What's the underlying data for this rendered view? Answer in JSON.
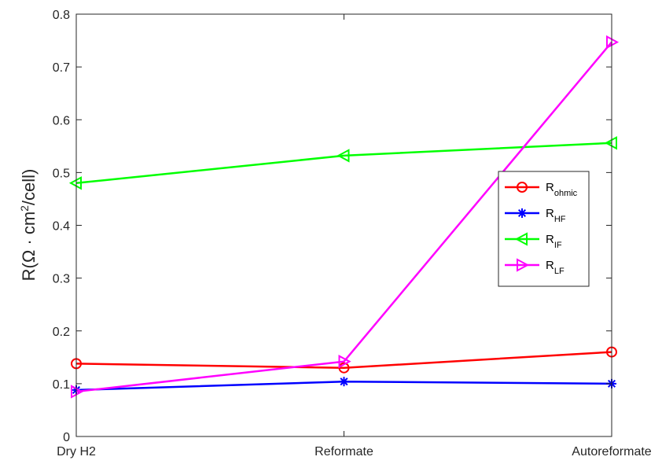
{
  "chart_data": {
    "type": "line",
    "categories": [
      "Dry H2",
      "Reformate",
      "Autoreformate"
    ],
    "ylabel": "R(Ω · cm²/cell)",
    "ylim": [
      0,
      0.8
    ],
    "yticks": [
      "0",
      "0.1",
      "0.2",
      "0.3",
      "0.4",
      "0.5",
      "0.6",
      "0.7",
      "0.8"
    ],
    "grid": false,
    "legend_position": "right",
    "series": [
      {
        "name": "R_ohmic",
        "label_main": "R",
        "label_sub": "ohmic",
        "color": "#ff0000",
        "marker": "circle",
        "values": [
          0.138,
          0.13,
          0.16
        ]
      },
      {
        "name": "R_HF",
        "label_main": "R",
        "label_sub": "HF",
        "color": "#0000ff",
        "marker": "asterisk",
        "values": [
          0.088,
          0.104,
          0.1
        ]
      },
      {
        "name": "R_IF",
        "label_main": "R",
        "label_sub": "IF",
        "color": "#00ff00",
        "marker": "triangle-left",
        "values": [
          0.48,
          0.532,
          0.556
        ]
      },
      {
        "name": "R_LF",
        "label_main": "R",
        "label_sub": "LF",
        "color": "#ff00ff",
        "marker": "triangle-right",
        "values": [
          0.085,
          0.142,
          0.747
        ]
      }
    ]
  }
}
